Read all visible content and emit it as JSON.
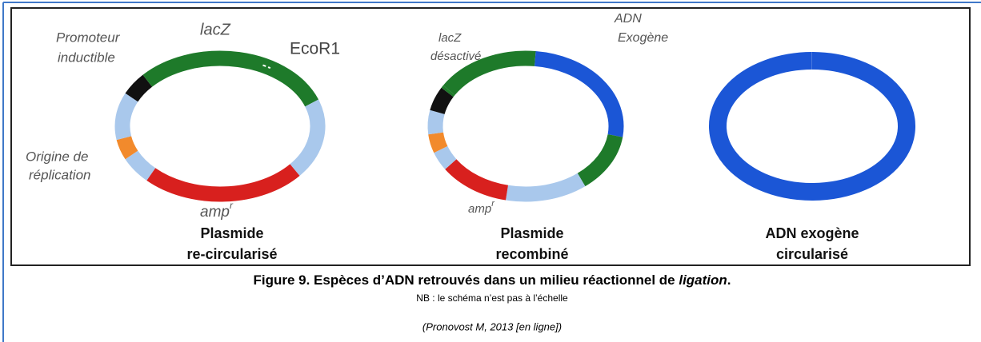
{
  "plasmid_recircularized": {
    "labels": {
      "promoter": [
        "Promoteur",
        "inductible"
      ],
      "lacz": "lacZ",
      "ecor1": "EcoR1",
      "origin": [
        "Origine de",
        "réplication"
      ],
      "amp": "amp",
      "amp_sup": "r"
    },
    "title": [
      "Plasmide",
      "re-circularisé"
    ]
  },
  "plasmid_recombined": {
    "labels": {
      "lacz": [
        "lacZ",
        "désactivé"
      ],
      "exogenous": [
        "ADN",
        "Exogène"
      ],
      "amp": "amp",
      "amp_sup": "r"
    },
    "title": [
      "Plasmide",
      "recombiné"
    ]
  },
  "exogenous_dna": {
    "title": [
      "ADN exogène",
      "circularisé"
    ]
  },
  "caption": {
    "title": [
      "Figure 9. Espèces d’ADN retrouvés dans un milieu réactionnel de ",
      "ligation",
      "."
    ],
    "note": "NB : le schéma n’est pas à l’échelle",
    "citation": "(Pronovost M, 2013 [en ligne])"
  }
}
